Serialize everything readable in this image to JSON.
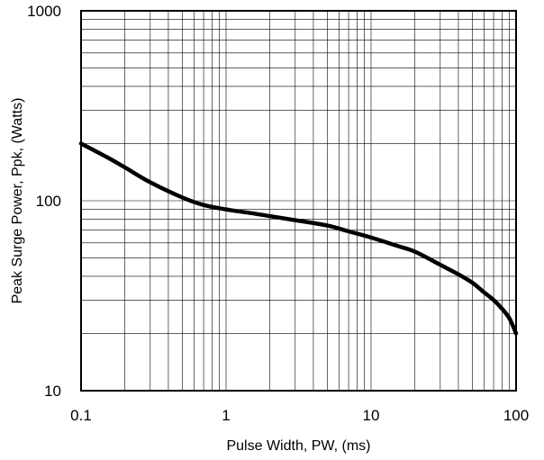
{
  "chart_data": {
    "type": "line",
    "title": "",
    "xlabel": "Pulse Width, PW, (ms)",
    "ylabel": "Peak Surge Power, Ppk, (Watts)",
    "x_scale": "log",
    "y_scale": "log",
    "xlim": [
      0.1,
      100
    ],
    "ylim": [
      10,
      1000
    ],
    "grid": true,
    "legend": "none",
    "x_ticks": [
      {
        "value": 0.1,
        "label": "0.1"
      },
      {
        "value": 1,
        "label": "1"
      },
      {
        "value": 10,
        "label": "10"
      },
      {
        "value": 100,
        "label": "100"
      }
    ],
    "y_ticks": [
      {
        "value": 10,
        "label": "10"
      },
      {
        "value": 100,
        "label": "100"
      },
      {
        "value": 1000,
        "label": "1000"
      }
    ],
    "series": [
      {
        "color": "#000000",
        "x": [
          0.1,
          0.15,
          0.2,
          0.3,
          0.5,
          0.7,
          1,
          1.5,
          2,
          3,
          5,
          7,
          10,
          15,
          20,
          30,
          40,
          50,
          60,
          70,
          80,
          90,
          100
        ],
        "y": [
          200,
          170,
          150,
          125,
          104,
          95,
          90,
          86,
          83,
          79,
          74,
          69,
          64,
          58,
          54,
          46,
          41,
          37,
          33,
          30,
          27,
          24,
          20
        ]
      }
    ]
  }
}
